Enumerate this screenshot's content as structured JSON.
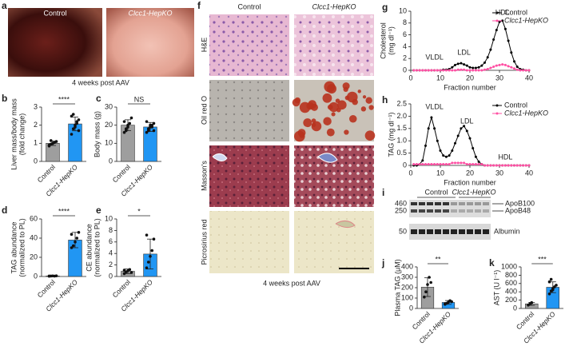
{
  "chart_data": [
    {
      "type": "bar",
      "panel": "b",
      "ylabel": [
        "Liver mass/body mass",
        "(fold change)"
      ],
      "categories": [
        "Control",
        "Clcc1-HepKO"
      ],
      "values": [
        1.0,
        2.07
      ],
      "errors": [
        0.12,
        0.38
      ],
      "colors": [
        "#9e9e9e",
        "#2196f3"
      ],
      "points": [
        [
          0.85,
          0.95,
          1.0,
          1.05,
          1.1,
          0.9,
          1.15,
          1.0
        ],
        [
          1.5,
          1.8,
          2.0,
          2.1,
          2.3,
          2.5,
          2.6,
          1.9,
          2.2,
          1.7
        ]
      ],
      "ylim": [
        0,
        3
      ],
      "yticks": [
        0,
        1,
        2,
        3
      ],
      "significance": "****"
    },
    {
      "type": "bar",
      "panel": "c",
      "ylabel": [
        "Body mass (g)"
      ],
      "categories": [
        "Control",
        "Clcc1-HepKO"
      ],
      "values": [
        20,
        19
      ],
      "errors": [
        3,
        2.5
      ],
      "colors": [
        "#9e9e9e",
        "#2196f3"
      ],
      "points": [
        [
          16,
          18,
          20,
          21,
          24,
          22,
          17,
          19
        ],
        [
          16,
          17,
          19,
          20,
          21,
          22,
          18,
          20,
          19,
          17
        ]
      ],
      "ylim": [
        0,
        30
      ],
      "yticks": [
        0,
        10,
        20,
        30
      ],
      "significance": "NS"
    },
    {
      "type": "bar",
      "panel": "d",
      "ylabel": [
        "TAG abundance",
        "(normalized to PL)"
      ],
      "categories": [
        "Control",
        "Clcc1-HepKO"
      ],
      "values": [
        0.5,
        38
      ],
      "errors": [
        0.3,
        8
      ],
      "colors": [
        "#9e9e9e",
        "#2196f3"
      ],
      "points": [
        [
          0.3,
          0.5,
          0.6,
          0.4,
          0.7,
          0.5
        ],
        [
          30,
          32,
          36,
          40,
          46,
          44
        ]
      ],
      "ylim": [
        0,
        60
      ],
      "yticks": [
        0,
        20,
        40,
        60
      ],
      "significance": "****"
    },
    {
      "type": "bar",
      "panel": "e",
      "ylabel": [
        "CE abundance",
        "(normalized to PL)"
      ],
      "categories": [
        "Control",
        "Clcc1-HepKO"
      ],
      "values": [
        0.9,
        3.9
      ],
      "errors": [
        0.4,
        2.6
      ],
      "colors": [
        "#9e9e9e",
        "#2196f3"
      ],
      "points": [
        [
          0.5,
          0.8,
          1.0,
          1.2,
          0.7,
          1.1
        ],
        [
          1.5,
          2.5,
          3.5,
          4.5,
          6.5,
          7.2
        ]
      ],
      "ylim": [
        0,
        10
      ],
      "yticks": [
        0,
        2,
        4,
        6,
        8,
        10
      ],
      "significance": "*"
    },
    {
      "type": "line",
      "panel": "g",
      "ylabel": [
        "Cholesterol",
        "(mg dl⁻¹)"
      ],
      "xlabel": "Fraction number",
      "annotations": [
        "VLDL",
        "LDL",
        "HDL"
      ],
      "x": [
        1,
        2,
        3,
        4,
        5,
        6,
        7,
        8,
        9,
        10,
        11,
        12,
        13,
        14,
        15,
        16,
        17,
        18,
        19,
        20,
        21,
        22,
        23,
        24,
        25,
        26,
        27,
        28,
        29,
        30,
        31,
        32,
        33,
        34,
        35,
        36,
        37,
        38,
        39,
        40
      ],
      "series": [
        {
          "name": "Control",
          "color": "#000000",
          "values": [
            0,
            0,
            0,
            0,
            0,
            0,
            0,
            0,
            0,
            0,
            0.1,
            0.1,
            0.2,
            0.5,
            0.9,
            1.1,
            1.2,
            1.0,
            0.8,
            0.5,
            0.4,
            0.4,
            0.5,
            0.8,
            1.3,
            2.2,
            3.5,
            5.2,
            6.8,
            8.2,
            8.4,
            7.0,
            5.0,
            3.0,
            1.5,
            0.6,
            0.2,
            0.1,
            0,
            0
          ]
        },
        {
          "name": "Clcc1-HepKO",
          "color": "#ff4fa3",
          "values": [
            0,
            0,
            0,
            0,
            0,
            0,
            0,
            0,
            0,
            0,
            0,
            0,
            0,
            0,
            0,
            0.1,
            0.1,
            0.1,
            0,
            0,
            0,
            0,
            0,
            0,
            0.1,
            0.2,
            0.4,
            0.6,
            0.8,
            0.9,
            1.0,
            0.9,
            0.7,
            0.5,
            0.3,
            0.1,
            0,
            0,
            0,
            0
          ]
        }
      ],
      "xlim": [
        0,
        40
      ],
      "xticks": [
        0,
        10,
        20,
        30,
        40
      ],
      "ylim": [
        0,
        10
      ],
      "yticks": [
        0,
        2,
        4,
        6,
        8,
        10
      ],
      "legend": "upper right"
    },
    {
      "type": "line",
      "panel": "h",
      "ylabel": [
        "TAG (mg dl⁻¹)"
      ],
      "xlabel": "Fraction number",
      "annotations": [
        "VLDL",
        "LDL",
        "HDL"
      ],
      "x": [
        1,
        2,
        3,
        4,
        5,
        6,
        7,
        8,
        9,
        10,
        11,
        12,
        13,
        14,
        15,
        16,
        17,
        18,
        19,
        20,
        21,
        22,
        23,
        24,
        25,
        26,
        27,
        28,
        29,
        30,
        31,
        32,
        33,
        34,
        35,
        36,
        37,
        38,
        39,
        40
      ],
      "series": [
        {
          "name": "Control",
          "color": "#000000",
          "values": [
            0,
            0,
            0.05,
            0.2,
            0.8,
            1.5,
            1.95,
            1.5,
            1.0,
            0.6,
            0.4,
            0.35,
            0.4,
            0.6,
            0.9,
            1.2,
            1.5,
            1.6,
            1.4,
            1.1,
            0.7,
            0.35,
            0.15,
            0.05,
            0,
            0,
            0,
            0,
            0,
            0,
            0,
            0,
            0,
            0,
            0,
            0,
            0,
            0,
            0,
            0
          ]
        },
        {
          "name": "Clcc1-HepKO",
          "color": "#ff4fa3",
          "values": [
            0.05,
            0.05,
            0.05,
            0.05,
            0.05,
            0.05,
            0.05,
            0.05,
            0.05,
            0.05,
            0.05,
            0.05,
            0.05,
            0.1,
            0.1,
            0.1,
            0.1,
            0.1,
            0.05,
            0.05,
            0.05,
            0.05,
            0.05,
            0.05,
            0,
            0,
            0,
            0,
            0,
            0,
            0,
            0,
            0,
            0,
            0,
            0,
            0,
            0,
            0,
            0
          ]
        }
      ],
      "xlim": [
        0,
        40
      ],
      "xticks": [
        0,
        10,
        20,
        30,
        40
      ],
      "ylim": [
        0,
        2.5
      ],
      "yticks": [
        0,
        0.5,
        {
          "value": 1,
          "label": "1.0"
        },
        1.5,
        {
          "value": 2,
          "label": "2.0"
        },
        2.5
      ],
      "legend": "upper right"
    },
    {
      "type": "bar",
      "panel": "j",
      "ylabel": [
        "Plasma TAG (μM)"
      ],
      "categories": [
        "Control",
        "Clcc1-HepKO"
      ],
      "values": [
        205,
        58
      ],
      "errors": [
        90,
        18
      ],
      "colors": [
        "#9e9e9e",
        "#2196f3"
      ],
      "points": [
        [
          110,
          160,
          230,
          300,
          250
        ],
        [
          40,
          50,
          60,
          75,
          65,
          45
        ]
      ],
      "ylim": [
        0,
        400
      ],
      "yticks": [
        0,
        100,
        200,
        300,
        400
      ],
      "significance": "**"
    },
    {
      "type": "bar",
      "panel": "k",
      "ylabel": [
        "AST (U l⁻¹)"
      ],
      "categories": [
        "Control",
        "Clcc1-HepKO"
      ],
      "values": [
        110,
        510
      ],
      "errors": [
        35,
        130
      ],
      "colors": [
        "#9e9e9e",
        "#2196f3"
      ],
      "points": [
        [
          80,
          110,
          140
        ],
        [
          350,
          420,
          480,
          520,
          560,
          640,
          700,
          450
        ]
      ],
      "ylim": [
        0,
        1000
      ],
      "yticks": [
        0,
        200,
        400,
        600,
        800,
        1000
      ],
      "significance": "***"
    }
  ],
  "figure": {
    "a": {
      "panel": "a",
      "labels": [
        "Control",
        "Clcc1-HepKO"
      ],
      "caption": "4 weeks post AAV"
    },
    "f": {
      "panel": "f",
      "columns": [
        "Control",
        "Clcc1-HepKO"
      ],
      "rows": [
        "H&E",
        "Oil red O",
        "Masson's",
        "Picrosirius red"
      ],
      "caption": "4 weeks post AAV"
    },
    "i": {
      "panel": "i",
      "groups": [
        "Control",
        "Clcc1-HepKO"
      ],
      "markers": [
        "460",
        "250",
        "50"
      ],
      "bands": [
        "ApoB100",
        "ApoB48",
        "Albumin"
      ]
    }
  }
}
